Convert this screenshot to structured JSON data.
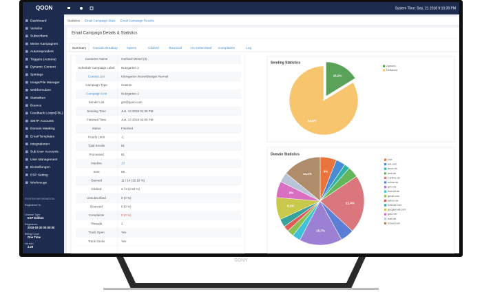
{
  "header": {
    "logo": "QOON",
    "system_time": "System Time: Sep, 21 2018 9:10:39 PM"
  },
  "sidebar": {
    "items": [
      "Dashboard",
      "Verteiler",
      "Subscribers",
      "Meine Kampagnen",
      "Autoresponders",
      "Triggers (Actions)",
      "Dynamic Content",
      "Spintags",
      "Image/File Manager",
      "Webformulare",
      "Statistiken",
      "Bounce",
      "Feedback Loops(FBL)",
      "SMTP Accounts",
      "Domain Masking",
      "Email Templates",
      "Integrationen",
      "Sub User Accounts",
      "User Management",
      "Einstellungen",
      "ESP Setting",
      "Werkzeuge"
    ],
    "system_info": {
      "title": "SYSTEM INFORMATION",
      "entries": [
        [
          "Registered To",
          ""
        ],
        [
          "License Type",
          "ESP Edition"
        ],
        [
          "Registered",
          "2018-02-20 00:00:00"
        ],
        [
          "Billing Cycle",
          "One Time"
        ],
        [
          "Version",
          "2.29"
        ]
      ]
    }
  },
  "breadcrumb": [
    "Statistics",
    "Email Campaign Stats",
    "Email Campaign Results"
  ],
  "page_title": "Email Campaign Details & Statistics",
  "tabs": [
    "Summary",
    "Domain Breakup",
    "Opens",
    "Clicked",
    "Bounced",
    "Un-subscribed",
    "Complaints",
    "Log"
  ],
  "table": {
    "rows": [
      [
        "Customer Name",
        "Gerhard Minsel (3)"
      ],
      [
        "Schedule Campaign Label",
        "Nutzgarten 2"
      ],
      [
        "Contact List",
        "Kleingarten Neuwittsteiger Normal"
      ],
      [
        "Campaign Type",
        "Custom"
      ],
      [
        "Campaign Unit",
        "Nutzgarten 2"
      ],
      [
        "Sender List",
        "gm@qoon.com"
      ],
      [
        "Sending Time",
        "Jun, 13 2018 01:30 PM"
      ],
      [
        "Finished Time",
        "Jun, 13 2018 02:05 PM"
      ],
      [
        "Status",
        "Finished"
      ],
      [
        "Hourly Limit",
        "-1"
      ],
      [
        "Total Emails",
        "81"
      ],
      [
        "Processed",
        "81"
      ],
      [
        "Inactive",
        "13"
      ],
      [
        "Sent",
        "68"
      ],
      [
        "Opened",
        "11 / 14    (16.18 %)"
      ],
      [
        "Clicked",
        "2 / 3    (2.94 %)"
      ],
      [
        "Unsubscribed",
        "0 (0 %)"
      ],
      [
        "Bounced",
        "0 (0 %)"
      ],
      [
        "Complaints",
        "0 (0 %)"
      ],
      [
        "Threads",
        "1"
      ],
      [
        "Track Open",
        "Yes"
      ],
      [
        "Track Clicks",
        "Yes"
      ]
    ]
  },
  "tv_brand": "SONY",
  "chart_data": [
    {
      "type": "pie",
      "title": "Sending Statistics",
      "categories": [
        "Opened",
        "Delivered"
      ],
      "values": [
        16.2,
        83.8
      ],
      "value_labels": [
        "16,2%",
        "83,8%"
      ],
      "colors": [
        "#5aa25a",
        "#f7c56e"
      ],
      "explode": 0
    },
    {
      "type": "pie",
      "title": "Domain Statistics",
      "categories": [
        "t.de",
        "aol.com",
        "arcor.de",
        "web.de",
        "t-online.de",
        "online.de",
        "gmx.de",
        "freenet.de",
        "gmail.com",
        "yahoo.de",
        "hotmail.com",
        "googlemail.com",
        "gmx.net",
        "mail.de",
        "icloud.com"
      ],
      "values": [
        6,
        3.5,
        2,
        4,
        21.4,
        5,
        15.7,
        3,
        2.5,
        2,
        3,
        8.1,
        6,
        3.6,
        14.1
      ],
      "value_labels": [
        "6%",
        null,
        null,
        null,
        "21,4%",
        null,
        "15,7%",
        null,
        null,
        null,
        null,
        "8,1%",
        "6%",
        null,
        "14,1%"
      ],
      "colors": [
        "#e8743b",
        "#4b8bd6",
        "#2bb3a6",
        "#63b65a",
        "#d9777d",
        "#5b7fd6",
        "#9b80d3",
        "#3fc1d9",
        "#8cc152",
        "#e05a5a",
        "#38a39c",
        "#c8c84a",
        "#d86fc0",
        "#b9c4d6",
        "#b08d6a"
      ]
    }
  ]
}
